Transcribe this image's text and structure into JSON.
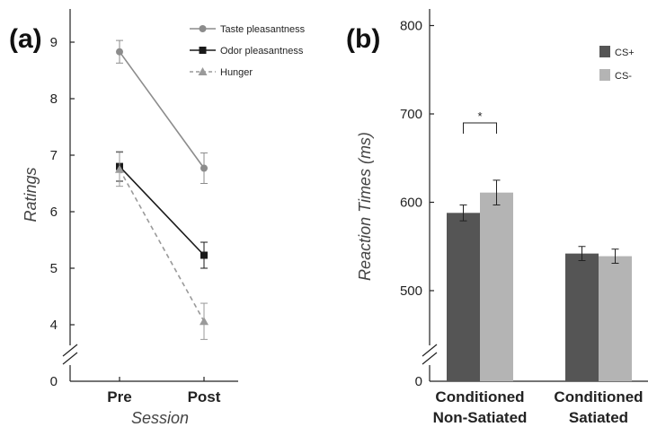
{
  "chart_data": [
    {
      "type": "line",
      "panel_label": "(a)",
      "xlabel": "Session",
      "ylabel": "Ratings",
      "categories": [
        "Pre",
        "Post"
      ],
      "y_ticks": [
        "0",
        "4",
        "5",
        "6",
        "7",
        "8",
        "9"
      ],
      "ylim": [
        3.5,
        9.5
      ],
      "axis_break": true,
      "legend_position": "top-right",
      "series": [
        {
          "name": "Taste pleasantness",
          "color": "#8c8c8c",
          "marker": "circle",
          "dashed": false,
          "values": [
            8.83,
            6.77
          ],
          "errors": [
            0.2,
            0.27
          ]
        },
        {
          "name": "Odor pleasantness",
          "color": "#1a1a1a",
          "marker": "square",
          "dashed": false,
          "values": [
            6.8,
            5.23
          ],
          "errors": [
            0.26,
            0.23
          ]
        },
        {
          "name": "Hunger",
          "color": "#9a9a9a",
          "marker": "triangle",
          "dashed": true,
          "values": [
            6.75,
            4.06
          ],
          "errors": [
            0.3,
            0.32
          ]
        }
      ]
    },
    {
      "type": "bar",
      "panel_label": "(b)",
      "ylabel": "Reaction Times (ms)",
      "categories": [
        [
          "Conditioned",
          "Non-Satiated"
        ],
        [
          "Conditioned",
          "Satiated"
        ]
      ],
      "y_ticks": [
        "0",
        "500",
        "600",
        "700",
        "800"
      ],
      "ylim": [
        430,
        800
      ],
      "axis_break": true,
      "legend_position": "top-right",
      "series": [
        {
          "name": "CS+",
          "color": "#555555",
          "values": [
            588,
            542
          ],
          "errors": [
            9,
            8
          ]
        },
        {
          "name": "CS-",
          "color": "#b4b4b4",
          "values": [
            611,
            539
          ],
          "errors": [
            14,
            8
          ]
        }
      ],
      "annotations": [
        {
          "text": "*",
          "category_index": 0
        }
      ]
    }
  ]
}
